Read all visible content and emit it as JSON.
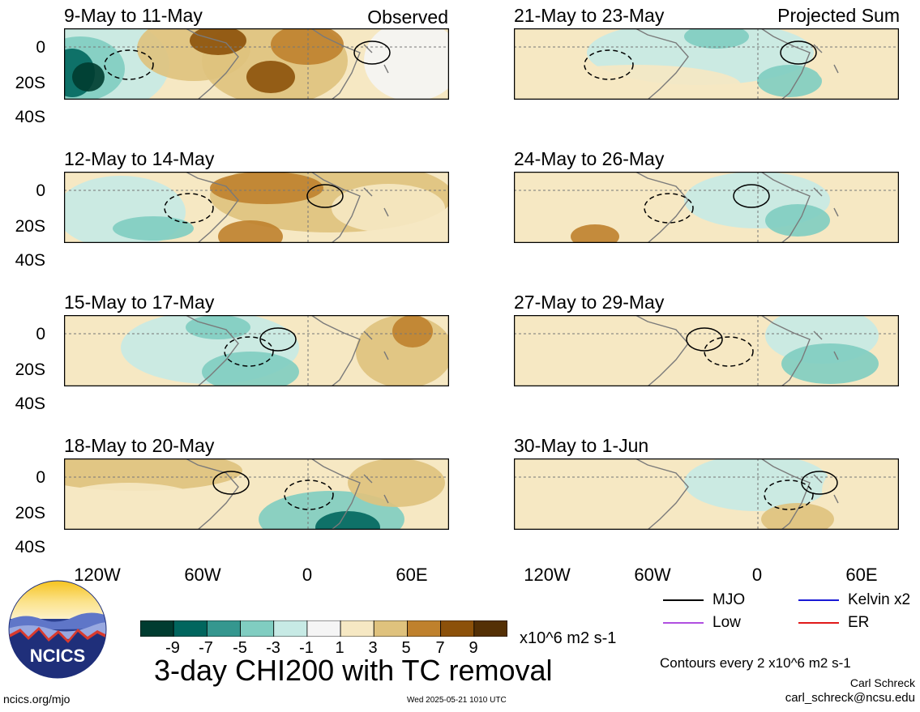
{
  "panels": [
    {
      "title": "9-May to 11-May",
      "tag": "Observed"
    },
    {
      "title": "21-May to 23-May",
      "tag": "Projected Sum"
    },
    {
      "title": "12-May to 14-May",
      "tag": ""
    },
    {
      "title": "24-May to 26-May",
      "tag": ""
    },
    {
      "title": "15-May to 17-May",
      "tag": ""
    },
    {
      "title": "27-May to 29-May",
      "tag": ""
    },
    {
      "title": "18-May to 20-May",
      "tag": ""
    },
    {
      "title": "30-May to 1-Jun",
      "tag": ""
    }
  ],
  "axes": {
    "y_ticks": [
      "0",
      "20S",
      "40S"
    ],
    "x_ticks": [
      "120W",
      "60W",
      "0",
      "60E"
    ]
  },
  "colorbar": {
    "labels": [
      "-9",
      "-7",
      "-5",
      "-3",
      "-1",
      "1",
      "3",
      "5",
      "7",
      "9"
    ],
    "colors": [
      "#003c30",
      "#01665e",
      "#35978f",
      "#80cdc1",
      "#c7eae5",
      "#f5f5f5",
      "#f6e8c3",
      "#dfc27d",
      "#bf812d",
      "#8c510a",
      "#543005"
    ],
    "units": "x10^6 m2 s-1"
  },
  "legend": {
    "mjo": "MJO",
    "kelvin": "Kelvin x2",
    "low": "Low",
    "er": "ER",
    "colors": {
      "mjo": "#000000",
      "kelvin": "#1a1ad6",
      "low": "#b04fe0",
      "er": "#e01a1a"
    }
  },
  "contours_note": "Contours every 2 x10^6 m2 s-1",
  "main_title": "3-day CHI200 with TC removal",
  "author": "Carl Schreck",
  "email": "carl_schreck@ncsu.edu",
  "site": "ncics.org/mjo",
  "timestamp": "Wed 2025-05-21 1010 UTC",
  "logo_text": "NCICS",
  "chart_data": {
    "type": "heatmap",
    "title": "3-day CHI200 with TC removal",
    "variable": "CHI200 anomaly",
    "units": "x10^6 m2 s-1",
    "x_range": [
      "150W",
      "80E"
    ],
    "y_range": [
      "10N",
      "40S"
    ],
    "color_levels": [
      -9,
      -7,
      -5,
      -3,
      -1,
      1,
      3,
      5,
      7,
      9
    ],
    "contour_interval": 2,
    "panels": [
      {
        "period": "9-May to 11-May",
        "kind": "Observed"
      },
      {
        "period": "12-May to 14-May",
        "kind": "Observed"
      },
      {
        "period": "15-May to 17-May",
        "kind": "Observed"
      },
      {
        "period": "18-May to 20-May",
        "kind": "Observed"
      },
      {
        "period": "21-May to 23-May",
        "kind": "Projected Sum"
      },
      {
        "period": "24-May to 26-May",
        "kind": "Projected Sum"
      },
      {
        "period": "27-May to 29-May",
        "kind": "Projected Sum"
      },
      {
        "period": "30-May to 1-Jun",
        "kind": "Projected Sum"
      }
    ]
  }
}
